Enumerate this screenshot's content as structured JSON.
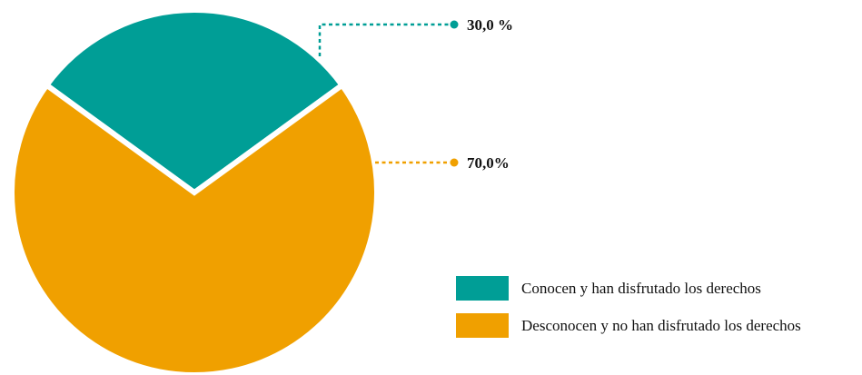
{
  "chart_data": {
    "type": "pie",
    "categories": [
      "Conocen y han disfrutado los derechos",
      "Desconocen y no han disfrutado los derechos"
    ],
    "values": [
      30.0,
      70.0
    ],
    "data_labels": [
      "30,0 %",
      "70,0%"
    ],
    "colors": [
      "#009e96",
      "#f0a000"
    ],
    "title": "",
    "legend": "bottom-right"
  }
}
